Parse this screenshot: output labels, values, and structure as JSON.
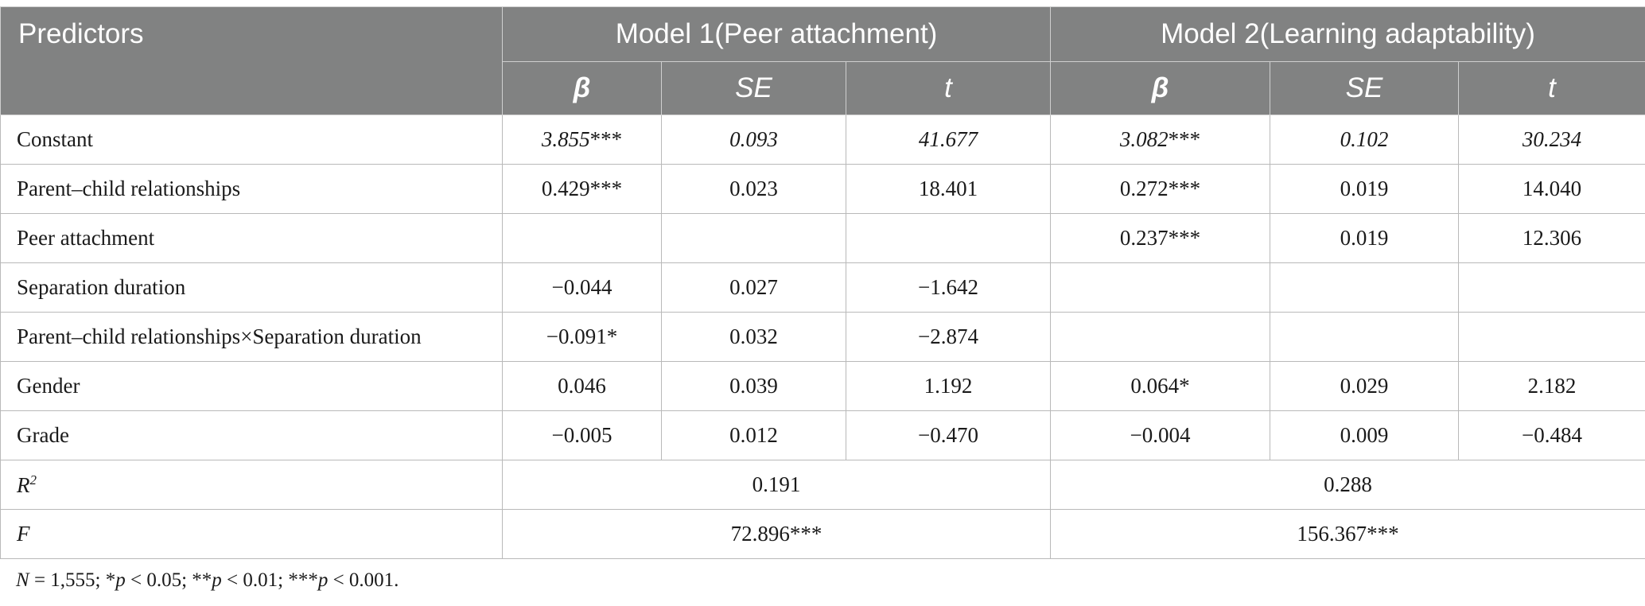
{
  "header": {
    "predictors": "Predictors",
    "model1": "Model 1(Peer attachment)",
    "model2": "Model 2(Learning adaptability)",
    "beta": "β",
    "se": "SE",
    "t": "t"
  },
  "rows": [
    {
      "label": "Constant",
      "m1_b": "3.855",
      "m1_b_sig": "***",
      "m1_se": "0.093",
      "m1_t": "41.677",
      "m2_b": "3.082",
      "m2_b_sig": "***",
      "m2_se": "0.102",
      "m2_t": "30.234"
    },
    {
      "label": "Parent–child relationships",
      "m1_b": "0.429***",
      "m1_se": "0.023",
      "m1_t": "18.401",
      "m2_b": "0.272***",
      "m2_se": "0.019",
      "m2_t": "14.040"
    },
    {
      "label": "Peer attachment",
      "m1_b": "",
      "m1_se": "",
      "m1_t": "",
      "m2_b": "0.237***",
      "m2_se": "0.019",
      "m2_t": "12.306"
    },
    {
      "label": "Separation duration",
      "m1_b": "−0.044",
      "m1_se": "0.027",
      "m1_t": "−1.642",
      "m2_b": "",
      "m2_se": "",
      "m2_t": ""
    },
    {
      "label": "Parent–child relationships×Separation duration",
      "m1_b": "−0.091*",
      "m1_se": "0.032",
      "m1_t": "−2.874",
      "m2_b": "",
      "m2_se": "",
      "m2_t": ""
    },
    {
      "label": "Gender",
      "m1_b": "0.046",
      "m1_se": "0.039",
      "m1_t": "1.192",
      "m2_b": "0.064*",
      "m2_se": "0.029",
      "m2_t": "2.182"
    },
    {
      "label": "Grade",
      "m1_b": "−0.005",
      "m1_se": "0.012",
      "m1_t": "−0.470",
      "m2_b": "−0.004",
      "m2_se": "0.009",
      "m2_t": "−0.484"
    }
  ],
  "summary": {
    "r2_label_base": "R",
    "r2_label_sup": "2",
    "r2_m1": "0.191",
    "r2_m2": "0.288",
    "f_label": "F",
    "f_m1": "72.896***",
    "f_m2": "156.367***"
  },
  "footnote": {
    "n_label": "N",
    "n_rest": " = 1,555; *",
    "p1": "p",
    "p1_rest": " < 0.05; **",
    "p2": "p",
    "p2_rest": " < 0.01; ***",
    "p3": "p",
    "p3_rest": " < 0.001."
  }
}
